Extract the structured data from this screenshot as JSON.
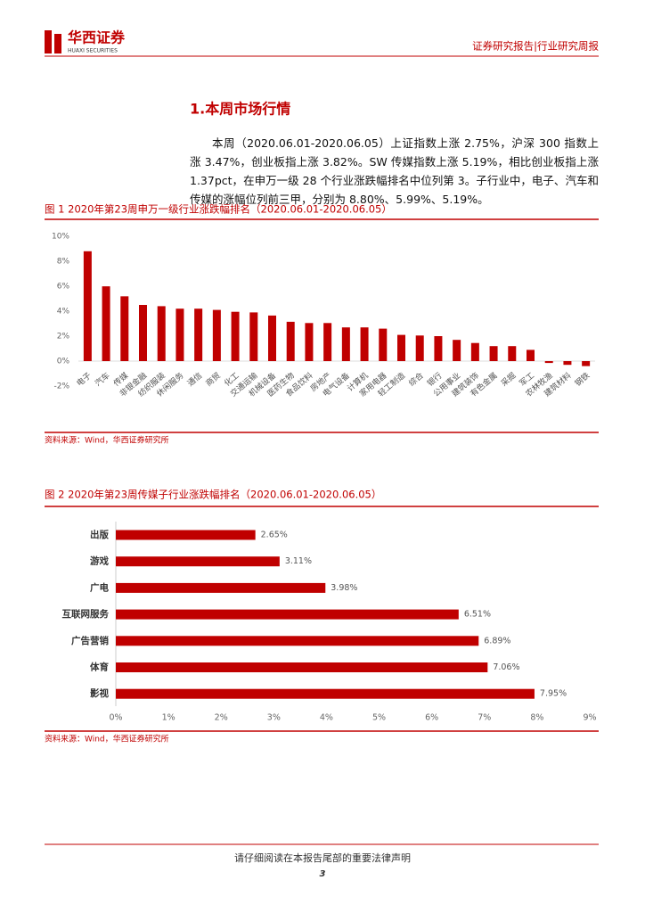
{
  "header": {
    "logo_cn": "华西证券",
    "logo_en": "HUAXI SECURITIES",
    "report_type": "证券研究报告|行业研究周报"
  },
  "section": {
    "heading": "1.本周市场行情",
    "paragraph": "本周（2020.06.01-2020.06.05）上证指数上涨 2.75%，沪深 300 指数上涨 3.47%，创业板指上涨 3.82%。SW 传媒指数上涨 5.19%，相比创业板指上涨 1.37pct，在申万一级 28 个行业涨跌幅排名中位列第 3。子行业中，电子、汽车和传媒的涨幅位列前三甲，分别为 8.80%、5.99%、5.19%。"
  },
  "figures": [
    {
      "title": "图 1 2020年第23周申万一级行业涨跌幅排名（2020.06.01-2020.06.05）",
      "source": "资料来源：Wind，华西证券研究所",
      "chart_data": {
        "type": "bar",
        "color": "#c00000",
        "categories": [
          "电子",
          "汽车",
          "传媒",
          "非银金融",
          "纺织服装",
          "休闲服务",
          "通信",
          "商贸",
          "化工",
          "交通运输",
          "机械设备",
          "医药生物",
          "食品饮料",
          "房地产",
          "电气设备",
          "计算机",
          "家用电器",
          "轻工制造",
          "综合",
          "银行",
          "公用事业",
          "建筑装饰",
          "有色金属",
          "采掘",
          "军工",
          "农林牧渔",
          "建筑材料",
          "钢铁"
        ],
        "values": [
          8.8,
          5.99,
          5.19,
          4.5,
          4.4,
          4.2,
          4.2,
          4.1,
          3.95,
          3.9,
          3.65,
          3.15,
          3.05,
          3.05,
          2.7,
          2.7,
          2.6,
          2.1,
          2.05,
          2.0,
          1.7,
          1.45,
          1.2,
          1.2,
          0.9,
          -0.15,
          -0.3,
          -0.4
        ],
        "ylim": [
          -2,
          10
        ],
        "yticks": [
          {
            "value": -2,
            "label": "-2%"
          },
          {
            "value": 0,
            "label": "0%"
          },
          {
            "value": 2,
            "label": "2%"
          },
          {
            "value": 4,
            "label": "4%"
          },
          {
            "value": 6,
            "label": "6%"
          },
          {
            "value": 8,
            "label": "8%"
          },
          {
            "value": 10,
            "label": "10%"
          }
        ]
      }
    },
    {
      "title": "图 2 2020年第23周传媒子行业涨跌幅排名（2020.06.01-2020.06.05）",
      "source": "资料来源：Wind，华西证券研究所",
      "chart_data": {
        "type": "barh",
        "color": "#c00000",
        "categories": [
          "出版",
          "游戏",
          "广电",
          "互联网服务",
          "广告营销",
          "体育",
          "影视"
        ],
        "values": [
          2.65,
          3.11,
          3.98,
          6.51,
          6.89,
          7.06,
          7.95
        ],
        "value_labels": [
          "2.65%",
          "3.11%",
          "3.98%",
          "6.51%",
          "6.89%",
          "7.06%",
          "7.95%"
        ],
        "xlim": [
          0,
          9
        ],
        "xticks": [
          {
            "value": 0,
            "label": "0%"
          },
          {
            "value": 1,
            "label": "1%"
          },
          {
            "value": 2,
            "label": "2%"
          },
          {
            "value": 3,
            "label": "3%"
          },
          {
            "value": 4,
            "label": "4%"
          },
          {
            "value": 5,
            "label": "5%"
          },
          {
            "value": 6,
            "label": "6%"
          },
          {
            "value": 7,
            "label": "7%"
          },
          {
            "value": 8,
            "label": "8%"
          },
          {
            "value": 9,
            "label": "9%"
          }
        ]
      }
    }
  ],
  "footer": {
    "notice": "请仔细阅读在本报告尾部的重要法律声明",
    "page": 3
  }
}
